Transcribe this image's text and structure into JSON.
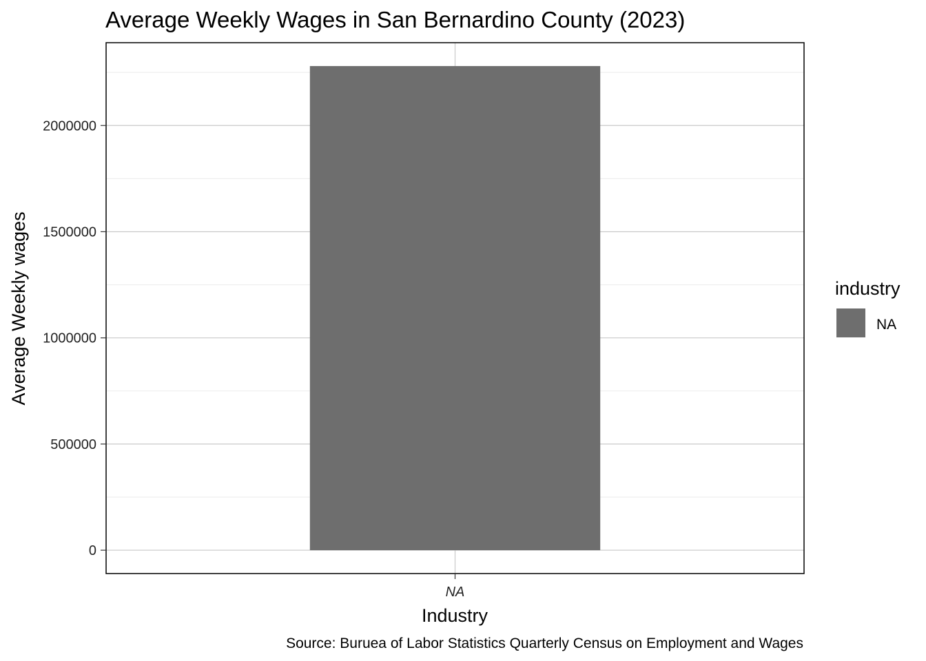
{
  "chart_data": {
    "type": "bar",
    "title": "Average Weekly Wages in San Bernardino County (2023)",
    "xlabel": "Industry",
    "ylabel": "Average Weekly wages",
    "categories": [
      "NA"
    ],
    "values": [
      2280000
    ],
    "ylim": [
      -110000,
      2390000
    ],
    "yticks": [
      0,
      500000,
      1000000,
      1500000,
      2000000
    ],
    "ytick_labels": [
      "0",
      "500000",
      "1000000",
      "1500000",
      "2000000"
    ],
    "grid": true,
    "legend": {
      "title": "industry",
      "entries": [
        {
          "label": "NA",
          "color": "#6e6e6e"
        }
      ],
      "position": "right"
    },
    "caption": "Source: Buruea of Labor Statistics Quarterly Census on Employment and Wages",
    "bar_color": "#6e6e6e"
  }
}
